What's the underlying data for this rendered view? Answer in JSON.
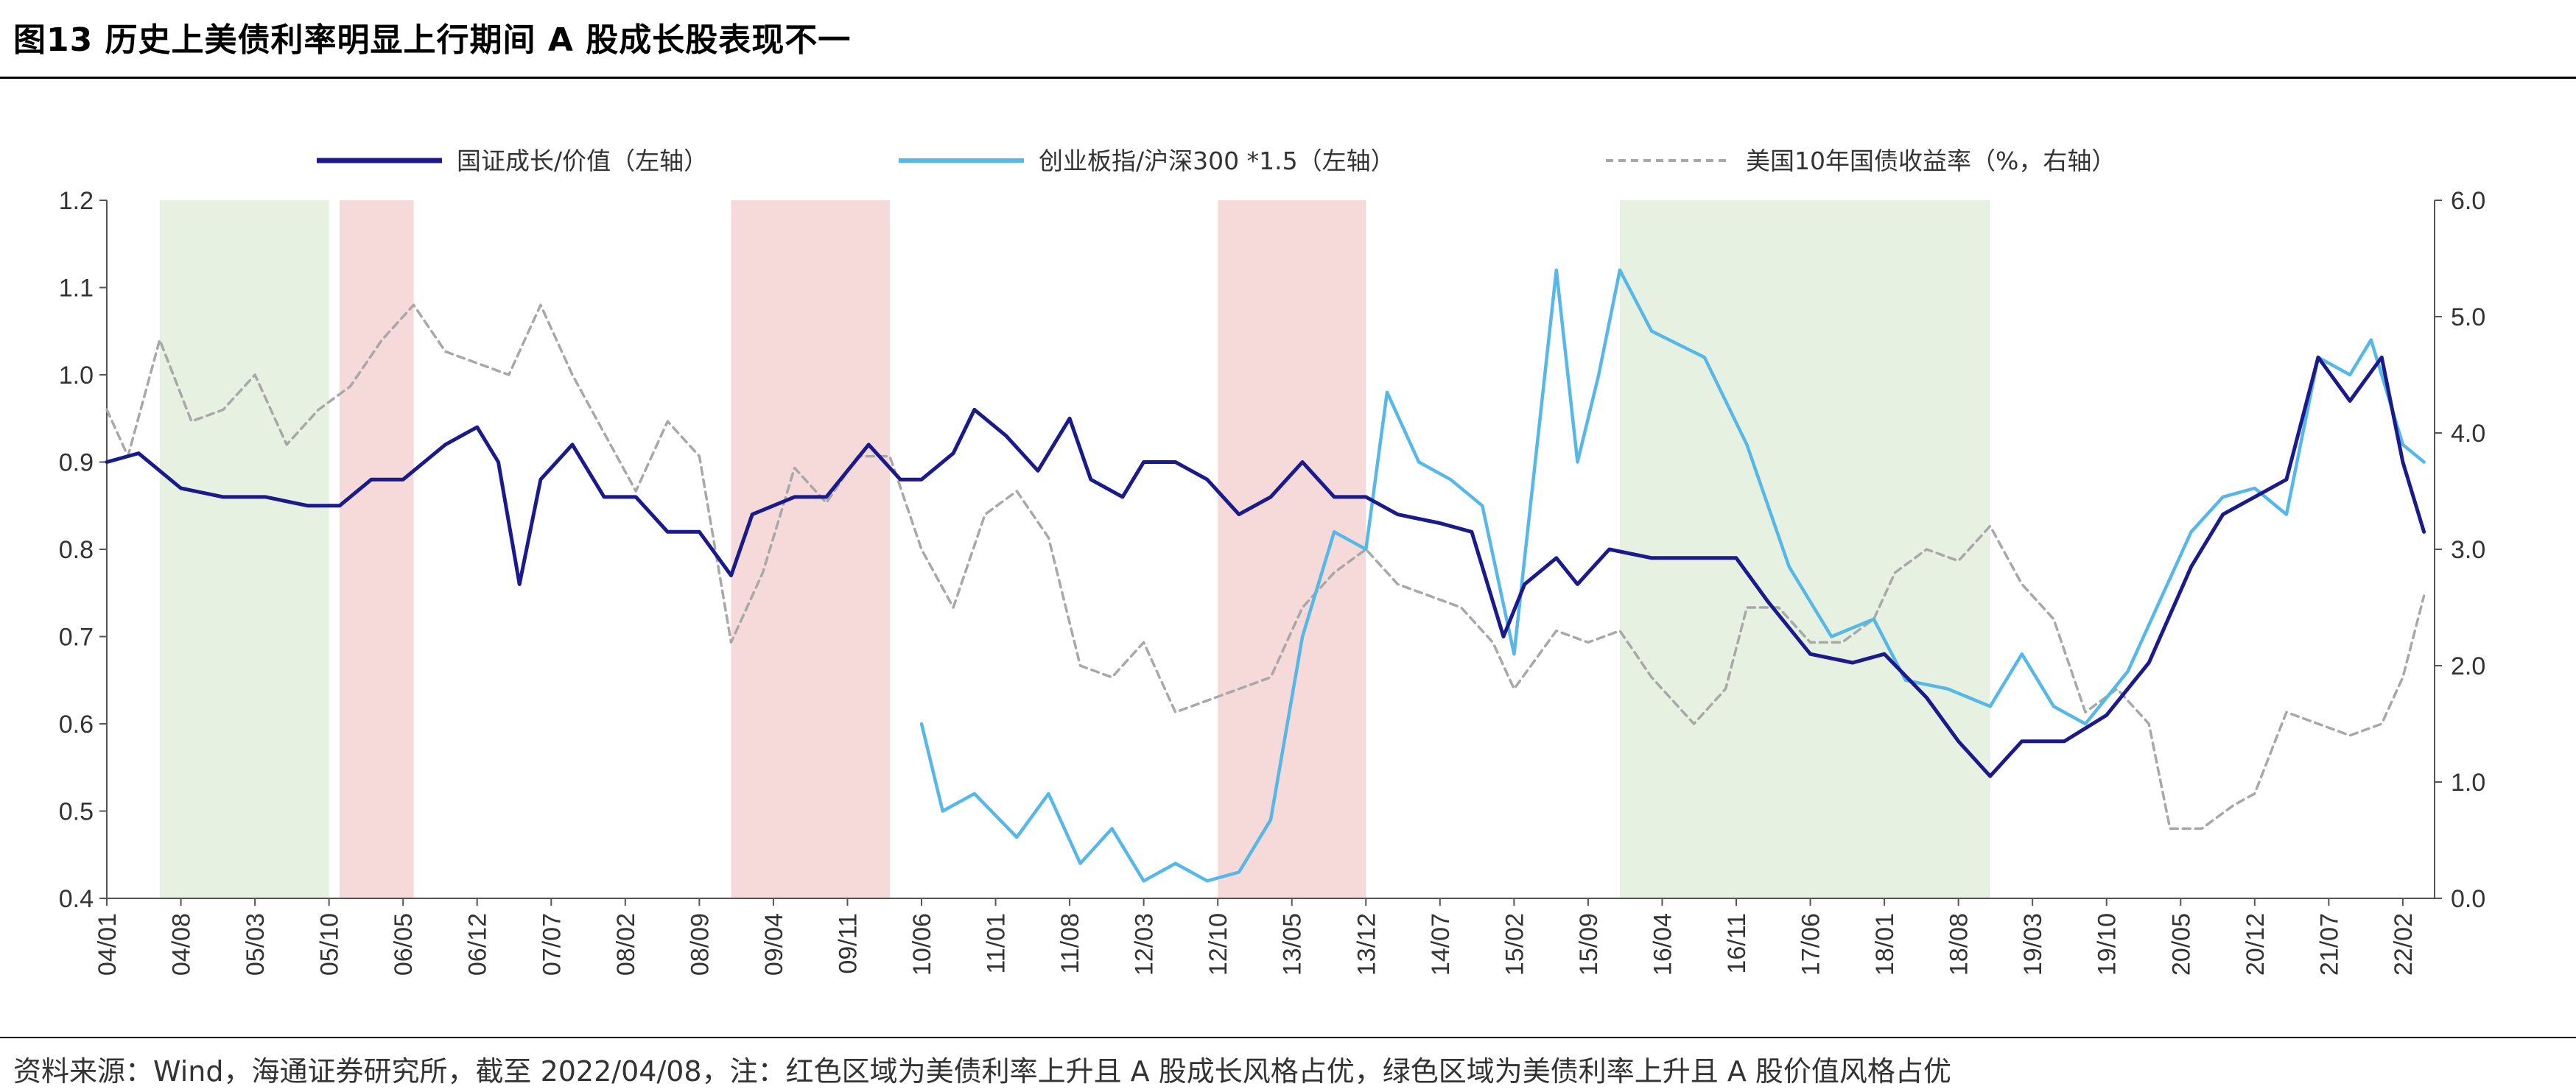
{
  "title": "图13 历史上美债利率明显上行期间 A 股成长股表现不一",
  "source": "资料来源：Wind，海通证券研究所，截至 2022/04/08，注：红色区域为美债利率上升且 A 股成长风格占优，绿色区域为美债利率上升且 A 股价值风格占优",
  "colors": {
    "series1": "#1a1a8c",
    "series2": "#55b8e8",
    "series3": "#a8a8a8",
    "red_band": "#f6dada",
    "green_band": "#e6f1e1"
  },
  "chart_data": {
    "type": "line",
    "x_tick_labels": [
      "04/01",
      "04/08",
      "05/03",
      "05/10",
      "06/05",
      "06/12",
      "07/07",
      "08/02",
      "08/09",
      "09/04",
      "09/11",
      "10/06",
      "11/01",
      "11/08",
      "12/03",
      "12/10",
      "13/05",
      "13/12",
      "14/07",
      "15/02",
      "15/09",
      "16/04",
      "16/11",
      "17/06",
      "18/01",
      "18/08",
      "19/03",
      "19/10",
      "20/05",
      "20/12",
      "21/07",
      "22/02"
    ],
    "y_left": {
      "range": [
        0.4,
        1.2
      ],
      "ticks": [
        "0.4",
        "0.5",
        "0.6",
        "0.7",
        "0.8",
        "0.9",
        "1.0",
        "1.1",
        "1.2"
      ]
    },
    "y_right": {
      "range": [
        0.0,
        6.0
      ],
      "ticks": [
        "0.0",
        "1.0",
        "2.0",
        "3.0",
        "4.0",
        "5.0",
        "6.0"
      ]
    },
    "legend": [
      {
        "label": "国证成长/价值（左轴）",
        "style": "solid-thick"
      },
      {
        "label": "创业板指/沪深300 *1.5（左轴）",
        "style": "solid"
      },
      {
        "label": "美国10年国债收益率（%，右轴）",
        "style": "dashed"
      }
    ],
    "shaded_periods": [
      {
        "start": "2004/06",
        "end": "2005/10",
        "color": "green"
      },
      {
        "start": "2005/11",
        "end": "2006/06",
        "color": "red"
      },
      {
        "start": "2008/12",
        "end": "2010/03",
        "color": "red"
      },
      {
        "start": "2012/10",
        "end": "2013/12",
        "color": "red"
      },
      {
        "start": "2015/12",
        "end": "2018/11",
        "color": "green"
      }
    ],
    "series": [
      {
        "axis": "left",
        "points": [
          [
            "2004/01",
            0.9
          ],
          [
            "2004/04",
            0.91
          ],
          [
            "2004/08",
            0.87
          ],
          [
            "2004/12",
            0.86
          ],
          [
            "2005/04",
            0.86
          ],
          [
            "2005/08",
            0.85
          ],
          [
            "2005/11",
            0.85
          ],
          [
            "2006/02",
            0.88
          ],
          [
            "2006/05",
            0.88
          ],
          [
            "2006/09",
            0.92
          ],
          [
            "2006/12",
            0.94
          ],
          [
            "2007/02",
            0.9
          ],
          [
            "2007/04",
            0.76
          ],
          [
            "2007/06",
            0.88
          ],
          [
            "2007/09",
            0.92
          ],
          [
            "2007/12",
            0.86
          ],
          [
            "2008/03",
            0.86
          ],
          [
            "2008/06",
            0.82
          ],
          [
            "2008/09",
            0.82
          ],
          [
            "2008/12",
            0.77
          ],
          [
            "2009/02",
            0.84
          ],
          [
            "2009/06",
            0.86
          ],
          [
            "2009/09",
            0.86
          ],
          [
            "2010/01",
            0.92
          ],
          [
            "2010/04",
            0.88
          ],
          [
            "2010/06",
            0.88
          ],
          [
            "2010/09",
            0.91
          ],
          [
            "2010/11",
            0.96
          ],
          [
            "2011/02",
            0.93
          ],
          [
            "2011/05",
            0.89
          ],
          [
            "2011/08",
            0.95
          ],
          [
            "2011/10",
            0.88
          ],
          [
            "2012/01",
            0.86
          ],
          [
            "2012/03",
            0.9
          ],
          [
            "2012/06",
            0.9
          ],
          [
            "2012/09",
            0.88
          ],
          [
            "2012/12",
            0.84
          ],
          [
            "2013/03",
            0.86
          ],
          [
            "2013/06",
            0.9
          ],
          [
            "2013/09",
            0.86
          ],
          [
            "2013/12",
            0.86
          ],
          [
            "2014/03",
            0.84
          ],
          [
            "2014/07",
            0.83
          ],
          [
            "2014/10",
            0.82
          ],
          [
            "2015/01",
            0.7
          ],
          [
            "2015/03",
            0.76
          ],
          [
            "2015/06",
            0.79
          ],
          [
            "2015/08",
            0.76
          ],
          [
            "2015/11",
            0.8
          ],
          [
            "2016/03",
            0.79
          ],
          [
            "2016/07",
            0.79
          ],
          [
            "2016/11",
            0.79
          ],
          [
            "2017/02",
            0.74
          ],
          [
            "2017/06",
            0.68
          ],
          [
            "2017/10",
            0.67
          ],
          [
            "2018/01",
            0.68
          ],
          [
            "2018/05",
            0.63
          ],
          [
            "2018/08",
            0.58
          ],
          [
            "2018/11",
            0.54
          ],
          [
            "2019/02",
            0.58
          ],
          [
            "2019/06",
            0.58
          ],
          [
            "2019/10",
            0.61
          ],
          [
            "2020/02",
            0.67
          ],
          [
            "2020/06",
            0.78
          ],
          [
            "2020/09",
            0.84
          ],
          [
            "2020/12",
            0.86
          ],
          [
            "2021/03",
            0.88
          ],
          [
            "2021/06",
            1.02
          ],
          [
            "2021/09",
            0.97
          ],
          [
            "2021/12",
            1.02
          ],
          [
            "2022/02",
            0.9
          ],
          [
            "2022/04",
            0.82
          ]
        ]
      },
      {
        "axis": "left",
        "points": [
          [
            "2010/06",
            0.6
          ],
          [
            "2010/08",
            0.5
          ],
          [
            "2010/11",
            0.52
          ],
          [
            "2011/03",
            0.47
          ],
          [
            "2011/06",
            0.52
          ],
          [
            "2011/09",
            0.44
          ],
          [
            "2011/12",
            0.48
          ],
          [
            "2012/03",
            0.42
          ],
          [
            "2012/06",
            0.44
          ],
          [
            "2012/09",
            0.42
          ],
          [
            "2012/12",
            0.43
          ],
          [
            "2013/03",
            0.49
          ],
          [
            "2013/06",
            0.7
          ],
          [
            "2013/09",
            0.82
          ],
          [
            "2013/12",
            0.8
          ],
          [
            "2014/02",
            0.98
          ],
          [
            "2014/05",
            0.9
          ],
          [
            "2014/08",
            0.88
          ],
          [
            "2014/11",
            0.85
          ],
          [
            "2015/02",
            0.68
          ],
          [
            "2015/04",
            0.9
          ],
          [
            "2015/06",
            1.12
          ],
          [
            "2015/08",
            0.9
          ],
          [
            "2015/10",
            1.0
          ],
          [
            "2015/12",
            1.12
          ],
          [
            "2016/03",
            1.05
          ],
          [
            "2016/08",
            1.02
          ],
          [
            "2016/12",
            0.92
          ],
          [
            "2017/04",
            0.78
          ],
          [
            "2017/08",
            0.7
          ],
          [
            "2017/12",
            0.72
          ],
          [
            "2018/03",
            0.65
          ],
          [
            "2018/07",
            0.64
          ],
          [
            "2018/11",
            0.62
          ],
          [
            "2019/02",
            0.68
          ],
          [
            "2019/05",
            0.62
          ],
          [
            "2019/08",
            0.6
          ],
          [
            "2019/12",
            0.66
          ],
          [
            "2020/03",
            0.74
          ],
          [
            "2020/06",
            0.82
          ],
          [
            "2020/09",
            0.86
          ],
          [
            "2020/12",
            0.87
          ],
          [
            "2021/03",
            0.84
          ],
          [
            "2021/06",
            1.02
          ],
          [
            "2021/09",
            1.0
          ],
          [
            "2021/11",
            1.04
          ],
          [
            "2022/02",
            0.92
          ],
          [
            "2022/04",
            0.9
          ]
        ]
      },
      {
        "axis": "right",
        "points": [
          [
            "2004/01",
            4.2
          ],
          [
            "2004/03",
            3.8
          ],
          [
            "2004/06",
            4.8
          ],
          [
            "2004/09",
            4.1
          ],
          [
            "2004/12",
            4.2
          ],
          [
            "2005/03",
            4.5
          ],
          [
            "2005/06",
            3.9
          ],
          [
            "2005/09",
            4.2
          ],
          [
            "2005/12",
            4.4
          ],
          [
            "2006/03",
            4.8
          ],
          [
            "2006/06",
            5.1
          ],
          [
            "2006/09",
            4.7
          ],
          [
            "2006/12",
            4.6
          ],
          [
            "2007/03",
            4.5
          ],
          [
            "2007/06",
            5.1
          ],
          [
            "2007/09",
            4.5
          ],
          [
            "2007/12",
            4.0
          ],
          [
            "2008/03",
            3.5
          ],
          [
            "2008/06",
            4.1
          ],
          [
            "2008/09",
            3.8
          ],
          [
            "2008/12",
            2.2
          ],
          [
            "2009/03",
            2.8
          ],
          [
            "2009/06",
            3.7
          ],
          [
            "2009/09",
            3.4
          ],
          [
            "2009/12",
            3.8
          ],
          [
            "2010/03",
            3.8
          ],
          [
            "2010/06",
            3.0
          ],
          [
            "2010/09",
            2.5
          ],
          [
            "2010/12",
            3.3
          ],
          [
            "2011/03",
            3.5
          ],
          [
            "2011/06",
            3.1
          ],
          [
            "2011/09",
            2.0
          ],
          [
            "2011/12",
            1.9
          ],
          [
            "2012/03",
            2.2
          ],
          [
            "2012/06",
            1.6
          ],
          [
            "2012/09",
            1.7
          ],
          [
            "2012/12",
            1.8
          ],
          [
            "2013/03",
            1.9
          ],
          [
            "2013/06",
            2.5
          ],
          [
            "2013/09",
            2.8
          ],
          [
            "2013/12",
            3.0
          ],
          [
            "2014/03",
            2.7
          ],
          [
            "2014/06",
            2.6
          ],
          [
            "2014/09",
            2.5
          ],
          [
            "2014/12",
            2.2
          ],
          [
            "2015/02",
            1.8
          ],
          [
            "2015/06",
            2.3
          ],
          [
            "2015/09",
            2.2
          ],
          [
            "2015/12",
            2.3
          ],
          [
            "2016/03",
            1.9
          ],
          [
            "2016/07",
            1.5
          ],
          [
            "2016/10",
            1.8
          ],
          [
            "2016/12",
            2.5
          ],
          [
            "2017/03",
            2.5
          ],
          [
            "2017/06",
            2.2
          ],
          [
            "2017/09",
            2.2
          ],
          [
            "2017/12",
            2.4
          ],
          [
            "2018/02",
            2.8
          ],
          [
            "2018/05",
            3.0
          ],
          [
            "2018/08",
            2.9
          ],
          [
            "2018/11",
            3.2
          ],
          [
            "2019/02",
            2.7
          ],
          [
            "2019/05",
            2.4
          ],
          [
            "2019/08",
            1.6
          ],
          [
            "2019/11",
            1.8
          ],
          [
            "2020/02",
            1.5
          ],
          [
            "2020/04",
            0.6
          ],
          [
            "2020/07",
            0.6
          ],
          [
            "2020/10",
            0.8
          ],
          [
            "2020/12",
            0.9
          ],
          [
            "2021/03",
            1.6
          ],
          [
            "2021/06",
            1.5
          ],
          [
            "2021/09",
            1.4
          ],
          [
            "2021/12",
            1.5
          ],
          [
            "2022/02",
            1.9
          ],
          [
            "2022/04",
            2.6
          ]
        ]
      }
    ]
  }
}
